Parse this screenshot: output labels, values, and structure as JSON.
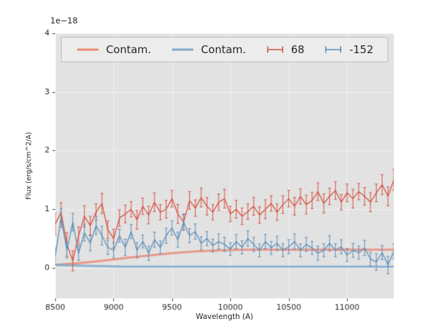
{
  "figure": {
    "bg": "#ffffff",
    "plot_bg": "#e2e2e2",
    "grid_color": "rgba(255,255,255,0.55)",
    "text_color": "#262626",
    "tick_color": "#444444"
  },
  "chart_data": {
    "type": "line",
    "title": "",
    "xlabel": "Wavelength (A)",
    "ylabel": "Flux (erg/s/cm^2/A)",
    "offset_text": "1e−18",
    "xlim": [
      8500,
      11400
    ],
    "ylim": [
      -0.52,
      4
    ],
    "xticks": [
      8500,
      9000,
      9500,
      10000,
      10500,
      11000
    ],
    "yticks": [
      0,
      1,
      2,
      3,
      4
    ],
    "grid": true,
    "legend_position": "upper center horizontal",
    "x": [
      8500,
      8550,
      8600,
      8650,
      8700,
      8750,
      8800,
      8850,
      8900,
      8950,
      9000,
      9050,
      9100,
      9150,
      9200,
      9250,
      9300,
      9350,
      9400,
      9450,
      9500,
      9550,
      9600,
      9650,
      9700,
      9750,
      9800,
      9850,
      9900,
      9950,
      10000,
      10050,
      10100,
      10150,
      10200,
      10250,
      10300,
      10350,
      10400,
      10450,
      10500,
      10550,
      10600,
      10650,
      10700,
      10750,
      10800,
      10850,
      10900,
      10950,
      11000,
      11050,
      11100,
      11150,
      11200,
      11250,
      11300,
      11350,
      11400
    ],
    "series": [
      {
        "name": "Contam.",
        "type": "line",
        "color": "#e98b77",
        "linewidth": 3,
        "x": [
          8500,
          8700,
          8900,
          9100,
          9300,
          9500,
          9700,
          9900,
          10100,
          10300,
          10500,
          10700,
          10900,
          11100,
          11300,
          11400
        ],
        "y": [
          0.05,
          0.08,
          0.12,
          0.17,
          0.21,
          0.25,
          0.28,
          0.3,
          0.31,
          0.31,
          0.31,
          0.31,
          0.31,
          0.31,
          0.31,
          0.31
        ]
      },
      {
        "name": "Contam.",
        "type": "line",
        "color": "#7fa8cc",
        "linewidth": 3,
        "x": [
          8500,
          8700,
          8900,
          9100,
          9300,
          9500,
          9700,
          9900,
          10100,
          10300,
          10500,
          10700,
          10900,
          11100,
          11300,
          11400
        ],
        "y": [
          0.05,
          0.04,
          0.03,
          0.02,
          0.02,
          0.02,
          0.02,
          0.02,
          0.02,
          0.02,
          0.02,
          0.02,
          0.02,
          0.02,
          0.02,
          0.02
        ]
      },
      {
        "name": "68",
        "type": "errorbar",
        "color": "#d6503e",
        "linewidth": 1.3,
        "y": [
          0.75,
          0.95,
          0.4,
          0.12,
          0.55,
          0.88,
          0.72,
          0.95,
          1.1,
          0.65,
          0.5,
          0.85,
          0.92,
          1.0,
          0.82,
          1.05,
          0.9,
          1.12,
          0.95,
          1.0,
          1.18,
          0.92,
          0.78,
          1.15,
          1.02,
          1.2,
          1.05,
          0.95,
          1.12,
          1.18,
          0.92,
          1.0,
          0.88,
          0.96,
          1.05,
          0.9,
          1.0,
          1.1,
          0.95,
          1.08,
          1.18,
          1.05,
          1.22,
          1.08,
          1.15,
          1.3,
          1.1,
          1.22,
          1.32,
          1.12,
          1.28,
          1.18,
          1.3,
          1.22,
          1.12,
          1.28,
          1.42,
          1.22,
          1.5
        ],
        "yerr": [
          0.18,
          0.16,
          0.2,
          0.17,
          0.15,
          0.18,
          0.16,
          0.14,
          0.17,
          0.15,
          0.16,
          0.14,
          0.15,
          0.13,
          0.16,
          0.14,
          0.15,
          0.16,
          0.13,
          0.15,
          0.14,
          0.16,
          0.13,
          0.15,
          0.14,
          0.16,
          0.15,
          0.13,
          0.14,
          0.16,
          0.13,
          0.15,
          0.14,
          0.13,
          0.15,
          0.14,
          0.16,
          0.13,
          0.14,
          0.15,
          0.14,
          0.15,
          0.13,
          0.16,
          0.14,
          0.15,
          0.16,
          0.14,
          0.15,
          0.13,
          0.15,
          0.16,
          0.14,
          0.15,
          0.16,
          0.15,
          0.17,
          0.16,
          0.18
        ]
      },
      {
        "name": "-152",
        "type": "errorbar",
        "color": "#5b8db8",
        "linewidth": 1.3,
        "y": [
          0.2,
          0.85,
          0.3,
          0.78,
          0.25,
          0.6,
          0.42,
          0.72,
          0.55,
          0.35,
          0.3,
          0.55,
          0.35,
          0.62,
          0.3,
          0.45,
          0.25,
          0.48,
          0.35,
          0.55,
          0.68,
          0.48,
          0.78,
          0.55,
          0.62,
          0.42,
          0.5,
          0.38,
          0.45,
          0.4,
          0.32,
          0.45,
          0.35,
          0.5,
          0.4,
          0.3,
          0.45,
          0.34,
          0.42,
          0.3,
          0.36,
          0.45,
          0.3,
          0.4,
          0.34,
          0.25,
          0.3,
          0.42,
          0.3,
          0.36,
          0.22,
          0.3,
          0.26,
          0.34,
          0.15,
          0.1,
          0.26,
          0.05,
          0.28
        ],
        "yerr": [
          0.14,
          0.16,
          0.13,
          0.15,
          0.12,
          0.14,
          0.13,
          0.15,
          0.16,
          0.12,
          0.13,
          0.11,
          0.14,
          0.12,
          0.13,
          0.11,
          0.12,
          0.13,
          0.11,
          0.13,
          0.12,
          0.13,
          0.14,
          0.12,
          0.13,
          0.11,
          0.12,
          0.11,
          0.13,
          0.12,
          0.11,
          0.12,
          0.11,
          0.13,
          0.12,
          0.11,
          0.12,
          0.11,
          0.12,
          0.11,
          0.12,
          0.13,
          0.11,
          0.12,
          0.11,
          0.12,
          0.11,
          0.13,
          0.11,
          0.12,
          0.11,
          0.12,
          0.11,
          0.13,
          0.12,
          0.14,
          0.12,
          0.15,
          0.13
        ]
      }
    ]
  }
}
